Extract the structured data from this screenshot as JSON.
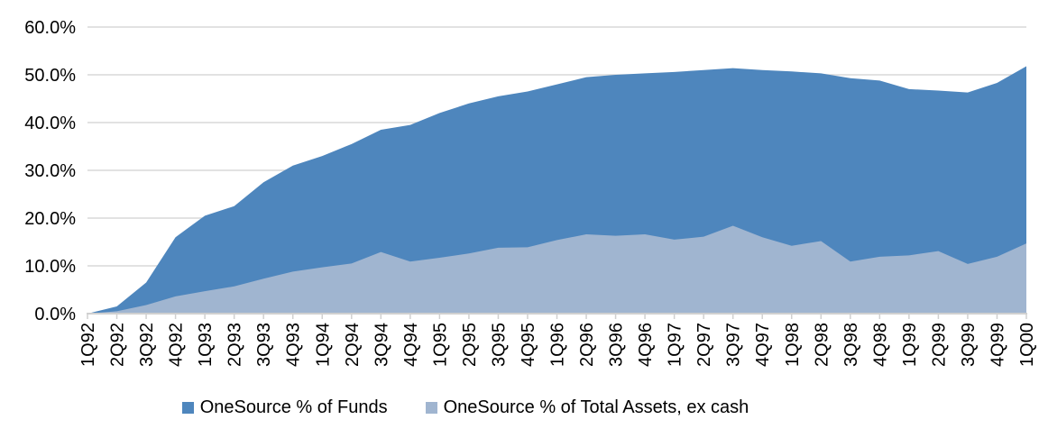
{
  "chart_data": {
    "type": "area",
    "mode": "overlapping",
    "title": "",
    "xlabel": "",
    "ylabel": "",
    "categories": [
      "1Q92",
      "2Q92",
      "3Q92",
      "4Q92",
      "1Q93",
      "2Q93",
      "3Q93",
      "4Q93",
      "1Q94",
      "2Q94",
      "3Q94",
      "4Q94",
      "1Q95",
      "2Q95",
      "3Q95",
      "4Q95",
      "1Q96",
      "2Q96",
      "3Q96",
      "4Q96",
      "1Q97",
      "2Q97",
      "3Q97",
      "4Q97",
      "1Q98",
      "2Q98",
      "3Q98",
      "4Q98",
      "1Q99",
      "2Q99",
      "3Q99",
      "4Q99",
      "1Q00"
    ],
    "series": [
      {
        "name": "OneSource % of Funds",
        "color": "#4E86BD",
        "values": [
          0.0,
          1.5,
          6.5,
          16.0,
          20.5,
          22.5,
          27.5,
          31.0,
          33.0,
          35.5,
          38.5,
          39.5,
          42.0,
          44.0,
          45.5,
          46.5,
          48.0,
          49.5,
          50.0,
          50.3,
          50.6,
          51.0,
          51.4,
          51.0,
          50.7,
          50.3,
          49.3,
          48.8,
          47.0,
          46.7,
          46.3,
          48.3,
          51.8
        ]
      },
      {
        "name": "OneSource % of Total Assets, ex cash",
        "color": "#A0B5D0",
        "values": [
          0.0,
          0.5,
          1.8,
          3.6,
          4.7,
          5.7,
          7.3,
          8.8,
          9.7,
          10.5,
          12.9,
          10.9,
          11.7,
          12.6,
          13.8,
          13.9,
          15.4,
          16.6,
          16.3,
          16.6,
          15.5,
          16.1,
          18.4,
          16.0,
          14.2,
          15.2,
          10.9,
          11.9,
          12.2,
          13.1,
          10.4,
          11.9,
          14.7
        ]
      }
    ],
    "ylim": [
      0,
      60
    ],
    "ytick_labels": [
      "0.0%",
      "10.0%",
      "20.0%",
      "30.0%",
      "40.0%",
      "50.0%",
      "60.0%"
    ],
    "grid": "horizontal",
    "gridline_color": "#D9D9D9",
    "legend_position": "bottom"
  }
}
